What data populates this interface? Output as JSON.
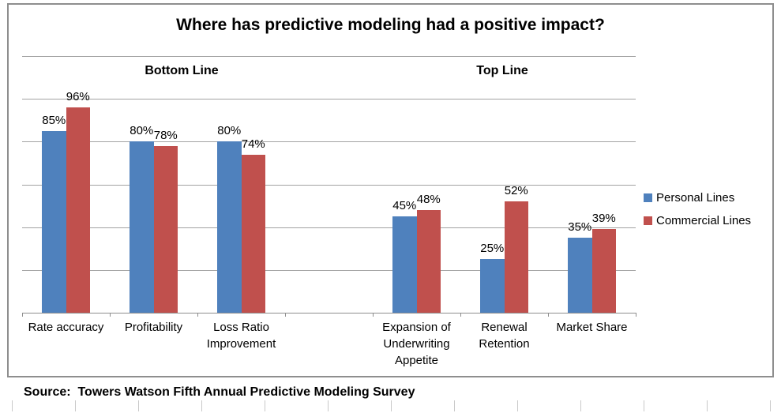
{
  "chart_data": {
    "type": "bar",
    "title": "Where has predictive modeling had a positive impact?",
    "groups": [
      {
        "label": "Bottom Line",
        "categories": [
          "Rate accuracy",
          "Profitability",
          "Loss Ratio Improvement"
        ]
      },
      {
        "label": "Top Line",
        "categories": [
          "Expansion of Underwriting Appetite",
          "Renewal Retention",
          "Market Share"
        ]
      }
    ],
    "series": [
      {
        "name": "Personal Lines",
        "color": "#4F81BD",
        "values": [
          85,
          80,
          80,
          45,
          25,
          35
        ]
      },
      {
        "name": "Commercial Lines",
        "color": "#C0504D",
        "values": [
          96,
          78,
          74,
          48,
          52,
          39
        ]
      }
    ],
    "data_label_suffix": "%",
    "ylim": [
      0,
      120
    ],
    "gridline_interval": 20,
    "y_axis_labels_visible": false,
    "grid": true,
    "legend_position": "right",
    "group_gap_slots": 1
  },
  "source_note": "Source:  Towers Watson Fifth Annual Predictive Modeling Survey",
  "colors": {
    "personal_lines": "#4F81BD",
    "commercial_lines": "#C0504D",
    "gridline": "#A3A3A3",
    "axis_line": "#8E8E8E",
    "chart_border": "#8E8E8E",
    "sheet_gridline": "#C9C9C9",
    "text": "#000000",
    "background": "#FFFFFF"
  }
}
